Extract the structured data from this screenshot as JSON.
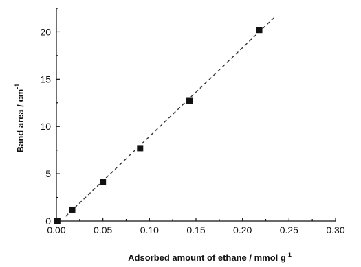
{
  "chart_data": {
    "type": "scatter",
    "xlabel": "Adsorbed amount of ethane /  mmol g",
    "xlabel_sup": "-1",
    "ylabel": "Band area / cm",
    "ylabel_sup": "-1",
    "xlim": [
      0.0,
      0.3
    ],
    "ylim": [
      0,
      22.5
    ],
    "x_ticks": [
      {
        "value": 0.0,
        "label": "0.00"
      },
      {
        "value": 0.05,
        "label": "0.05"
      },
      {
        "value": 0.1,
        "label": "0.10"
      },
      {
        "value": 0.15,
        "label": "0.15"
      },
      {
        "value": 0.2,
        "label": "0.20"
      },
      {
        "value": 0.25,
        "label": "0.25"
      },
      {
        "value": 0.3,
        "label": "0.30"
      }
    ],
    "y_ticks": [
      {
        "value": 0,
        "label": "0"
      },
      {
        "value": 5,
        "label": "5"
      },
      {
        "value": 10,
        "label": "10"
      },
      {
        "value": 15,
        "label": "15"
      },
      {
        "value": 20,
        "label": "20"
      }
    ],
    "series": [
      {
        "marker": "square",
        "color": "#111111",
        "points": [
          {
            "x": 0.001,
            "y": 0.0
          },
          {
            "x": 0.017,
            "y": 1.2
          },
          {
            "x": 0.05,
            "y": 4.1
          },
          {
            "x": 0.09,
            "y": 7.7
          },
          {
            "x": 0.143,
            "y": 12.7
          },
          {
            "x": 0.218,
            "y": 20.2
          }
        ]
      }
    ],
    "fit_line": {
      "style": "dashed",
      "color": "#333333",
      "start": {
        "x": 0.01,
        "y": 0.5
      },
      "end": {
        "x": 0.236,
        "y": 21.7
      }
    },
    "grid": false,
    "legend": "none"
  }
}
